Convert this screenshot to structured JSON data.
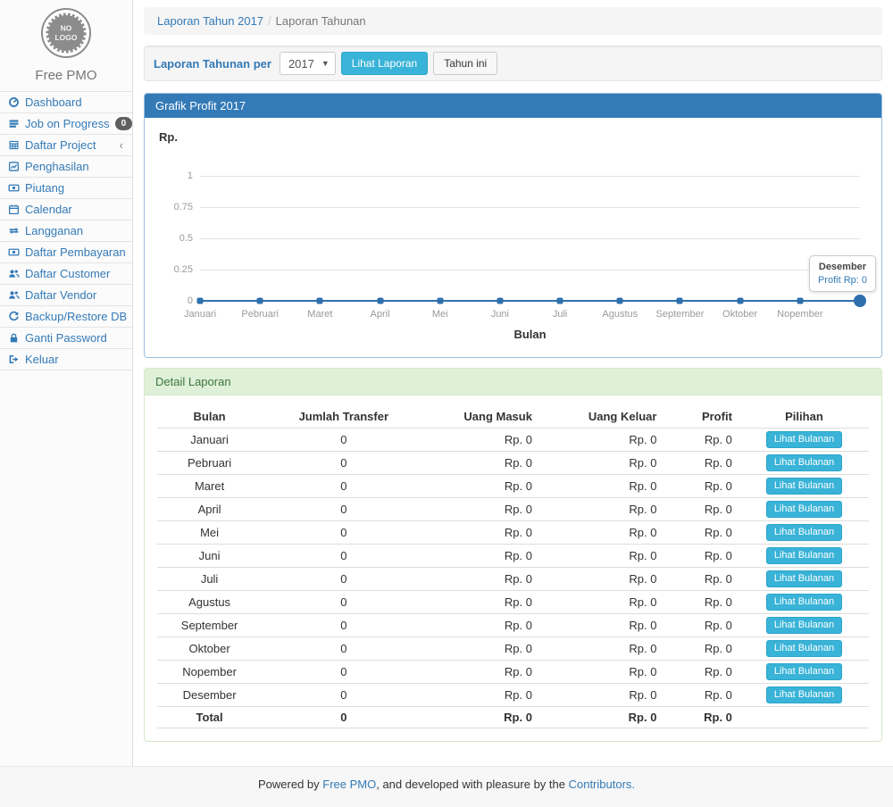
{
  "brand": {
    "logo_line1": "NO",
    "logo_line2": "LOGO",
    "name": "Free PMO"
  },
  "sidebar": {
    "items": [
      {
        "label": "Dashboard",
        "icon": "dashboard-icon"
      },
      {
        "label": "Job on Progress",
        "icon": "tasks-icon",
        "badge": "0"
      },
      {
        "label": "Daftar Project",
        "icon": "table-icon",
        "chevron": "‹"
      },
      {
        "label": "Penghasilan",
        "icon": "line-chart-icon"
      },
      {
        "label": "Piutang",
        "icon": "money-icon"
      },
      {
        "label": "Calendar",
        "icon": "calendar-icon"
      },
      {
        "label": "Langganan",
        "icon": "exchange-icon"
      },
      {
        "label": "Daftar Pembayaran",
        "icon": "money-icon"
      },
      {
        "label": "Daftar Customer",
        "icon": "users-icon"
      },
      {
        "label": "Daftar Vendor",
        "icon": "users-icon"
      },
      {
        "label": "Backup/Restore DB",
        "icon": "refresh-icon"
      },
      {
        "label": "Ganti Password",
        "icon": "lock-icon"
      },
      {
        "label": "Keluar",
        "icon": "sign-out-icon"
      }
    ]
  },
  "breadcrumb": {
    "items": [
      {
        "label": "Laporan Tahun 2017"
      },
      {
        "label": "Laporan Tahunan"
      }
    ],
    "separator": "/"
  },
  "filter": {
    "label": "Laporan Tahunan per",
    "year_value": "2017",
    "view_button": "Lihat Laporan",
    "this_year_button": "Tahun ini"
  },
  "chart_panel": {
    "title": "Grafik Profit 2017"
  },
  "chart_data": {
    "type": "line",
    "title": "Grafik Profit 2017",
    "categories": [
      "Januari",
      "Pebruari",
      "Maret",
      "April",
      "Mei",
      "Juni",
      "Juli",
      "Agustus",
      "September",
      "Oktober",
      "Nopember",
      "Desember"
    ],
    "x_tick_labels": [
      "Januari",
      "Pebruari",
      "Maret",
      "April",
      "Mei",
      "Juni",
      "Juli",
      "Agustus",
      "September",
      "Oktober",
      "Nopember"
    ],
    "series": [
      {
        "name": "Profit",
        "values": [
          0,
          0,
          0,
          0,
          0,
          0,
          0,
          0,
          0,
          0,
          0,
          0
        ]
      }
    ],
    "xlabel": "Bulan",
    "ylabel": "Rp.",
    "ylim": [
      0,
      1
    ],
    "yticks": [
      1,
      0.75,
      0.5,
      0.25,
      0
    ],
    "ytick_labels": [
      "1",
      "0.75",
      "0.5",
      "0.25",
      "0"
    ],
    "grid": true,
    "legend": "none",
    "line_color": "#2e6fae",
    "highlighted_point": {
      "category": "Desember",
      "value": 0
    },
    "tooltip": {
      "title": "Desember",
      "text": "Profit Rp: 0"
    }
  },
  "detail": {
    "title": "Detail Laporan",
    "table": {
      "headers": [
        "Bulan",
        "Jumlah Transfer",
        "Uang Masuk",
        "Uang Keluar",
        "Profit",
        "Pilihan"
      ],
      "action_label": "Lihat Bulanan",
      "rows": [
        {
          "bulan": "Januari",
          "jumlah_transfer": "0",
          "uang_masuk": "Rp. 0",
          "uang_keluar": "Rp. 0",
          "profit": "Rp. 0"
        },
        {
          "bulan": "Pebruari",
          "jumlah_transfer": "0",
          "uang_masuk": "Rp. 0",
          "uang_keluar": "Rp. 0",
          "profit": "Rp. 0"
        },
        {
          "bulan": "Maret",
          "jumlah_transfer": "0",
          "uang_masuk": "Rp. 0",
          "uang_keluar": "Rp. 0",
          "profit": "Rp. 0"
        },
        {
          "bulan": "April",
          "jumlah_transfer": "0",
          "uang_masuk": "Rp. 0",
          "uang_keluar": "Rp. 0",
          "profit": "Rp. 0"
        },
        {
          "bulan": "Mei",
          "jumlah_transfer": "0",
          "uang_masuk": "Rp. 0",
          "uang_keluar": "Rp. 0",
          "profit": "Rp. 0"
        },
        {
          "bulan": "Juni",
          "jumlah_transfer": "0",
          "uang_masuk": "Rp. 0",
          "uang_keluar": "Rp. 0",
          "profit": "Rp. 0"
        },
        {
          "bulan": "Juli",
          "jumlah_transfer": "0",
          "uang_masuk": "Rp. 0",
          "uang_keluar": "Rp. 0",
          "profit": "Rp. 0"
        },
        {
          "bulan": "Agustus",
          "jumlah_transfer": "0",
          "uang_masuk": "Rp. 0",
          "uang_keluar": "Rp. 0",
          "profit": "Rp. 0"
        },
        {
          "bulan": "September",
          "jumlah_transfer": "0",
          "uang_masuk": "Rp. 0",
          "uang_keluar": "Rp. 0",
          "profit": "Rp. 0"
        },
        {
          "bulan": "Oktober",
          "jumlah_transfer": "0",
          "uang_masuk": "Rp. 0",
          "uang_keluar": "Rp. 0",
          "profit": "Rp. 0"
        },
        {
          "bulan": "Nopember",
          "jumlah_transfer": "0",
          "uang_masuk": "Rp. 0",
          "uang_keluar": "Rp. 0",
          "profit": "Rp. 0"
        },
        {
          "bulan": "Desember",
          "jumlah_transfer": "0",
          "uang_masuk": "Rp. 0",
          "uang_keluar": "Rp. 0",
          "profit": "Rp. 0"
        }
      ],
      "total_row": {
        "bulan": "Total",
        "jumlah_transfer": "0",
        "uang_masuk": "Rp. 0",
        "uang_keluar": "Rp. 0",
        "profit": "Rp. 0"
      }
    }
  },
  "footer": {
    "prefix": "Powered by ",
    "link1": "Free PMO",
    "middle": ", and developed with pleasure by the ",
    "link2": "Contributors."
  },
  "colors": {
    "primary": "#337ab7",
    "info_button": "#39b3d7",
    "success_header_bg": "#dff0d8",
    "success_text": "#3c763d",
    "chart_line": "#2e6fae"
  }
}
